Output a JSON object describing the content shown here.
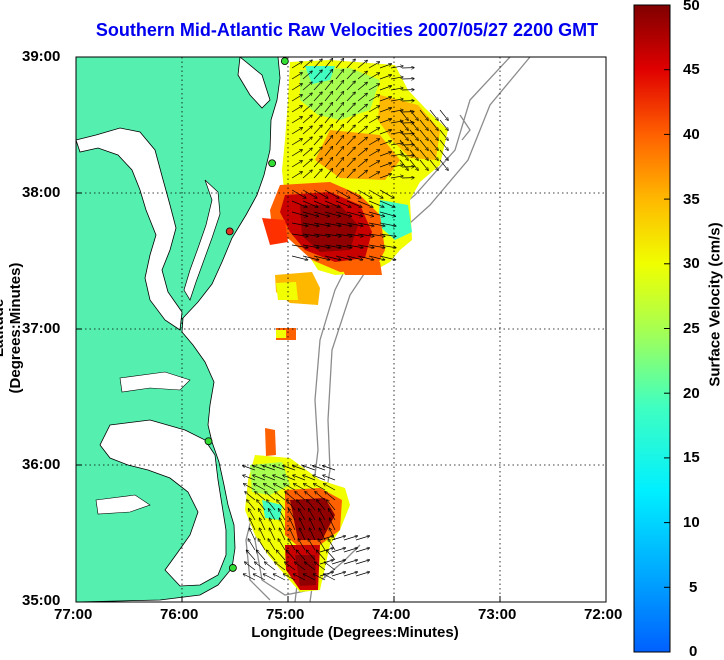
{
  "title": "Southern Mid-Atlantic Raw Velocities 2007/05/27 2200 GMT",
  "x_label": "Longitude (Degrees:Minutes)",
  "y_label": "Latitude (Degrees:Minutes)",
  "x_ticks": [
    "77:00",
    "76:00",
    "75:00",
    "74:00",
    "73:00",
    "72:00"
  ],
  "y_ticks": [
    "39:00",
    "38:00",
    "37:00",
    "36:00",
    "35:00"
  ],
  "colorbar": {
    "label": "Surface Velocity (cm/s)",
    "ticks": [
      "50",
      "45",
      "40",
      "35",
      "30",
      "25",
      "20",
      "15",
      "10",
      "5",
      "0"
    ]
  },
  "colors": {
    "land": "#55f0b0",
    "coast": "#000000",
    "bathymetry": "#8c8c8c",
    "title": "#0000ee",
    "site": "#33dd33",
    "site_alt": "#dd3322"
  },
  "map_data": {
    "lon_range": [
      -77,
      -72
    ],
    "lat_range": [
      35,
      39
    ],
    "velocity_range_cm_s": [
      0,
      50
    ],
    "grid": true,
    "regions": [
      {
        "name": "northern coverage",
        "mean_speed_cm_s": 30
      },
      {
        "name": "northern high-speed core",
        "mean_speed_cm_s": 45
      },
      {
        "name": "southern coverage",
        "mean_speed_cm_s": 35
      }
    ],
    "sites": [
      {
        "lon": -75.03,
        "lat": 38.97,
        "type": "site"
      },
      {
        "lon": -75.15,
        "lat": 38.22,
        "type": "site"
      },
      {
        "lon": -75.55,
        "lat": 37.72,
        "type": "site_alt"
      },
      {
        "lon": -75.75,
        "lat": 36.18,
        "type": "site"
      },
      {
        "lon": -75.52,
        "lat": 35.25,
        "type": "site"
      }
    ]
  }
}
